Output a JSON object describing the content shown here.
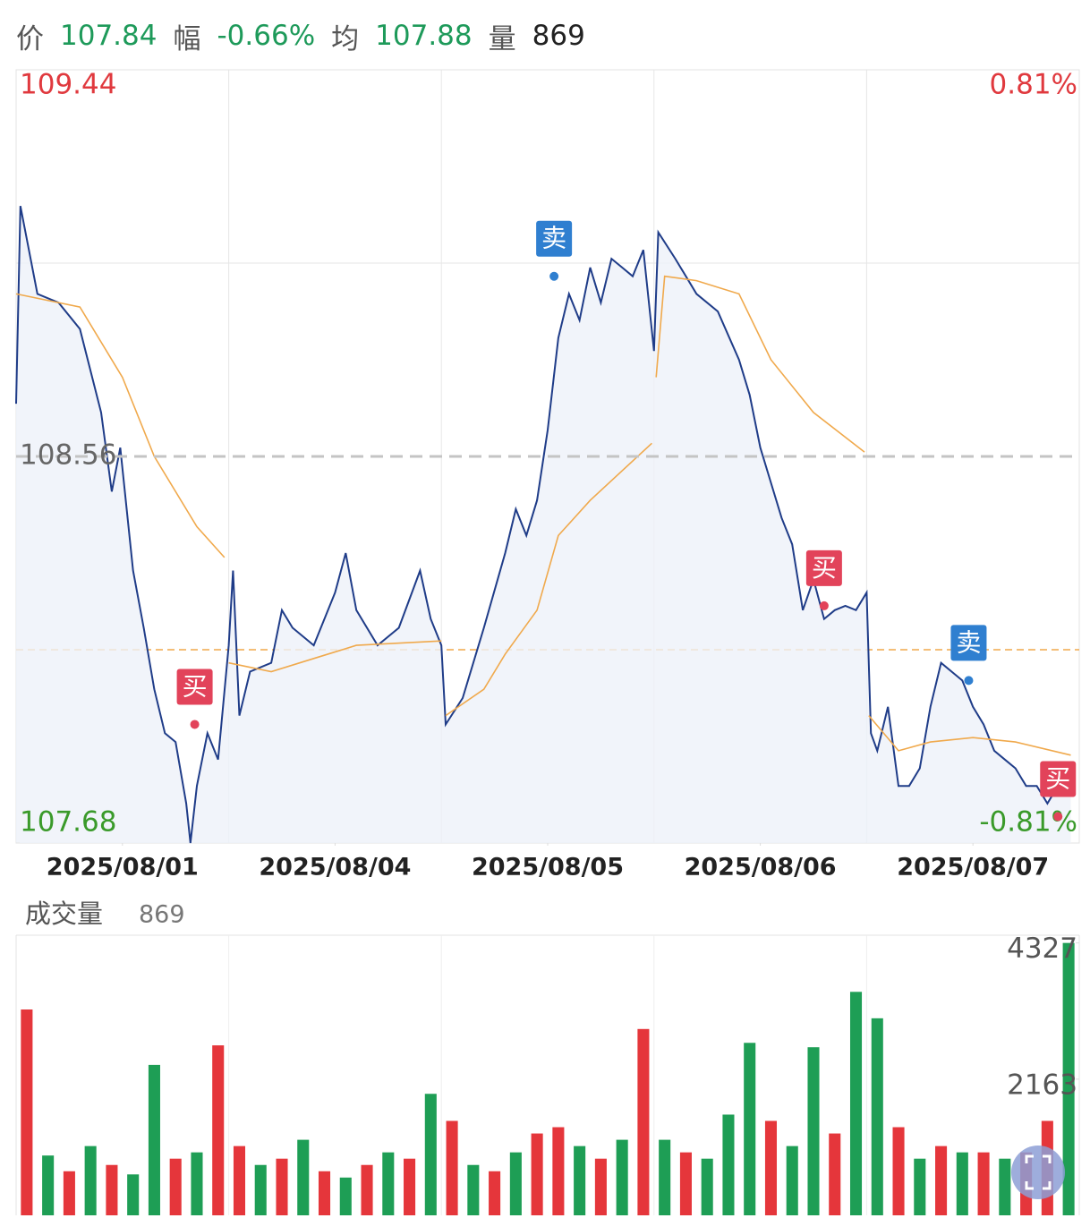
{
  "header": {
    "items": [
      {
        "label": "价",
        "value": "107.84",
        "color": "#1e9a5a"
      },
      {
        "label": "幅",
        "value": "-0.66%",
        "color": "#1e9a5a"
      },
      {
        "label": "均",
        "value": "107.88",
        "color": "#1e9a5a"
      },
      {
        "label": "量",
        "value": "869",
        "color": "#222222"
      }
    ]
  },
  "chart_data": [
    {
      "type": "line",
      "xlim": [
        0,
        5
      ],
      "ylim": [
        107.68,
        109.44
      ],
      "yticks": [
        109.44,
        108.56,
        107.68
      ],
      "ytick_colors": [
        "#e0393e",
        "#666666",
        "#3a9a2a"
      ],
      "y2lim": [
        -0.81,
        0.81
      ],
      "y2ticks": [
        {
          "value": 0.81,
          "label": "0.81%"
        },
        {
          "value": -0.81,
          "label": "-0.81%"
        }
      ],
      "y2tick_colors": [
        "#e0393e",
        "#3a9a2a"
      ],
      "xticks": [
        {
          "value": 0.5,
          "label": "2025/08/01"
        },
        {
          "value": 1.5,
          "label": "2025/08/04"
        },
        {
          "value": 2.5,
          "label": "2025/08/05"
        },
        {
          "value": 3.5,
          "label": "2025/08/06"
        },
        {
          "value": 4.5,
          "label": "2025/08/07"
        }
      ],
      "xgrid": [
        1,
        2,
        3,
        4
      ],
      "ygrid": [
        109.0
      ],
      "reference_line": {
        "value": 108.12,
        "color": "#f0a94c"
      },
      "series": [
        {
          "color": "#1f3c88",
          "x": [
            0,
            0.02,
            0.1,
            0.2,
            0.3,
            0.4,
            0.45,
            0.49,
            0.55,
            0.6,
            0.65,
            0.7,
            0.75,
            0.8,
            0.82,
            0.85,
            0.9,
            0.95,
            1.0,
            1.02,
            1.05,
            1.1,
            1.2,
            1.25,
            1.3,
            1.4,
            1.5,
            1.55,
            1.6,
            1.7,
            1.8,
            1.9,
            1.95,
            2.0,
            2.02,
            2.1,
            2.2,
            2.3,
            2.35,
            2.4,
            2.45,
            2.5,
            2.55,
            2.6,
            2.65,
            2.7,
            2.75,
            2.8,
            2.85,
            2.9,
            2.95,
            3.0,
            3.02,
            3.1,
            3.2,
            3.3,
            3.4,
            3.45,
            3.5,
            3.55,
            3.6,
            3.65,
            3.7,
            3.75,
            3.8,
            3.85,
            3.9,
            3.95,
            4.0,
            4.02,
            4.05,
            4.1,
            4.15,
            4.2,
            4.25,
            4.3,
            4.35,
            4.4,
            4.45,
            4.5,
            4.55,
            4.6,
            4.65,
            4.7,
            4.75,
            4.8,
            4.85,
            4.9,
            4.96
          ],
          "values": [
            108.68,
            109.13,
            108.93,
            108.91,
            108.85,
            108.66,
            108.48,
            108.58,
            108.3,
            108.17,
            108.03,
            107.93,
            107.91,
            107.77,
            107.68,
            107.81,
            107.93,
            107.87,
            108.13,
            108.3,
            107.97,
            108.07,
            108.09,
            108.21,
            108.17,
            108.13,
            108.25,
            108.34,
            108.21,
            108.13,
            108.17,
            108.3,
            108.19,
            108.13,
            107.95,
            108.01,
            108.17,
            108.34,
            108.44,
            108.38,
            108.46,
            108.62,
            108.83,
            108.93,
            108.87,
            108.99,
            108.91,
            109.01,
            108.99,
            108.97,
            109.03,
            108.8,
            109.07,
            109.01,
            108.93,
            108.89,
            108.78,
            108.7,
            108.58,
            108.5,
            108.42,
            108.36,
            108.21,
            108.28,
            108.19,
            108.21,
            108.22,
            108.21,
            108.25,
            107.93,
            107.89,
            107.99,
            107.81,
            107.81,
            107.85,
            107.99,
            108.09,
            108.07,
            108.05,
            107.99,
            107.95,
            107.89,
            107.87,
            107.85,
            107.81,
            107.81,
            107.77,
            107.81,
            107.81
          ]
        },
        {
          "color": "#f0a94c",
          "x": [
            0,
            0.3,
            0.5,
            0.65,
            0.85,
            0.98,
            0.99,
            1.0,
            1.2,
            1.4,
            1.6,
            2.0,
            2.01,
            2.02,
            2.2,
            2.3,
            2.45,
            2.55,
            2.7,
            2.99,
            3.0,
            3.01,
            3.05,
            3.2,
            3.4,
            3.55,
            3.75,
            3.99,
            4.0,
            4.01,
            4.15,
            4.3,
            4.5,
            4.7,
            4.96
          ],
          "values": [
            108.93,
            108.9,
            108.74,
            108.56,
            108.4,
            108.33,
            null,
            108.09,
            108.07,
            108.1,
            108.13,
            108.14,
            null,
            107.97,
            108.03,
            108.11,
            108.21,
            108.38,
            108.46,
            108.59,
            null,
            108.74,
            108.97,
            108.96,
            108.93,
            108.78,
            108.66,
            108.57,
            null,
            107.97,
            107.89,
            107.91,
            107.92,
            107.91,
            107.88
          ]
        }
      ],
      "signals": [
        {
          "label": "买",
          "x": 0.84,
          "value": 107.95,
          "color": "#e2435a"
        },
        {
          "label": "卖",
          "x": 2.53,
          "value": 108.97,
          "color": "#2f7fd0"
        },
        {
          "label": "买",
          "x": 3.8,
          "value": 108.22,
          "color": "#e2435a"
        },
        {
          "label": "卖",
          "x": 4.48,
          "value": 108.05,
          "color": "#2f7fd0"
        },
        {
          "label": "买",
          "x": 4.9,
          "value": 107.74,
          "color": "#e2435a"
        }
      ]
    },
    {
      "type": "bar",
      "title": "成交量",
      "subtitle": "869",
      "xlim": [
        0,
        5
      ],
      "ylim": [
        0,
        4450
      ],
      "yticks": [
        4327,
        2163
      ],
      "xgrid": [
        1,
        2,
        3,
        4
      ],
      "x": [
        0.05,
        0.15,
        0.25,
        0.35,
        0.45,
        0.55,
        0.65,
        0.75,
        0.85,
        0.95,
        1.05,
        1.15,
        1.25,
        1.35,
        1.45,
        1.55,
        1.65,
        1.75,
        1.85,
        1.95,
        2.05,
        2.15,
        2.25,
        2.35,
        2.45,
        2.55,
        2.65,
        2.75,
        2.85,
        2.95,
        3.05,
        3.15,
        3.25,
        3.35,
        3.45,
        3.55,
        3.65,
        3.75,
        3.85,
        3.95,
        4.05,
        4.15,
        4.25,
        4.35,
        4.45,
        4.55,
        4.65,
        4.75,
        4.85,
        4.95
      ],
      "values": [
        3270,
        950,
        700,
        1100,
        800,
        650,
        2390,
        900,
        1000,
        2700,
        1100,
        800,
        900,
        1200,
        700,
        600,
        800,
        1000,
        900,
        1930,
        1500,
        800,
        700,
        1000,
        1300,
        1400,
        1100,
        900,
        1200,
        2960,
        1200,
        1000,
        900,
        1600,
        2740,
        1500,
        1100,
        2670,
        1300,
        3550,
        3130,
        1400,
        900,
        1100,
        1000,
        1000,
        900,
        1000,
        1500,
        4327
      ],
      "colors": [
        "#e5363b",
        "#1e9e55",
        "#e5363b",
        "#1e9e55",
        "#e5363b",
        "#1e9e55",
        "#1e9e55",
        "#e5363b",
        "#1e9e55",
        "#e5363b",
        "#e5363b",
        "#1e9e55",
        "#e5363b",
        "#1e9e55",
        "#e5363b",
        "#1e9e55",
        "#e5363b",
        "#1e9e55",
        "#e5363b",
        "#1e9e55",
        "#e5363b",
        "#1e9e55",
        "#e5363b",
        "#1e9e55",
        "#e5363b",
        "#e5363b",
        "#1e9e55",
        "#e5363b",
        "#1e9e55",
        "#e5363b",
        "#1e9e55",
        "#e5363b",
        "#1e9e55",
        "#1e9e55",
        "#1e9e55",
        "#e5363b",
        "#1e9e55",
        "#1e9e55",
        "#e5363b",
        "#1e9e55",
        "#1e9e55",
        "#e5363b",
        "#1e9e55",
        "#e5363b",
        "#1e9e55",
        "#e5363b",
        "#1e9e55",
        "#e5363b",
        "#e5363b",
        "#1e9e55"
      ]
    }
  ]
}
